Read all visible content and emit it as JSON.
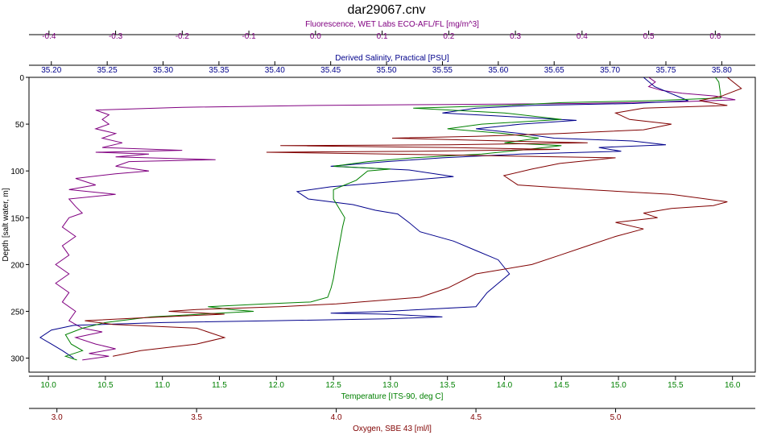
{
  "chart_data": {
    "type": "line",
    "title": "dar29067.cnv",
    "y_axis": {
      "label": "Depth [salt water, m]",
      "range": [
        0,
        315
      ],
      "reversed": true,
      "ticks": [
        0,
        50,
        100,
        150,
        200,
        250,
        300
      ]
    },
    "x_axes": [
      {
        "id": "fluorescence",
        "label": "Fluorescence, WET Labs ECO-AFL/FL [mg/m^3]",
        "position": "top",
        "color": "#800080",
        "range": [
          -0.43,
          0.66
        ],
        "ticks": [
          -0.4,
          -0.3,
          -0.2,
          -0.1,
          0.0,
          0.1,
          0.2,
          0.3,
          0.4,
          0.5,
          0.6
        ],
        "tick_labels": [
          "-0.4",
          "-0.3",
          "-0.2",
          "-0.1",
          "0.0",
          "0.1",
          "0.2",
          "0.3",
          "0.4",
          "0.5",
          "0.6"
        ]
      },
      {
        "id": "salinity",
        "label": "Derived Salinity, Practical [PSU]",
        "position": "top",
        "color": "#00008b",
        "range": [
          35.18,
          35.83
        ],
        "ticks": [
          35.2,
          35.25,
          35.3,
          35.35,
          35.4,
          35.45,
          35.5,
          35.55,
          35.6,
          35.65,
          35.7,
          35.75,
          35.8
        ],
        "tick_labels": [
          "35.20",
          "35.25",
          "35.30",
          "35.35",
          "35.40",
          "35.45",
          "35.50",
          "35.55",
          "35.60",
          "35.65",
          "35.70",
          "35.75",
          "35.80"
        ]
      },
      {
        "id": "temperature",
        "label": "Temperature [ITS-90, deg C]",
        "position": "bottom",
        "color": "#008000",
        "range": [
          9.83,
          16.2
        ],
        "ticks": [
          10.0,
          10.5,
          11.0,
          11.5,
          12.0,
          12.5,
          13.0,
          13.5,
          14.0,
          14.5,
          15.0,
          15.5,
          16.0
        ],
        "tick_labels": [
          "10.0",
          "10.5",
          "11.0",
          "11.5",
          "12.0",
          "12.5",
          "13.0",
          "13.5",
          "14.0",
          "14.5",
          "15.0",
          "15.5",
          "16.0"
        ]
      },
      {
        "id": "oxygen",
        "label": "Oxygen, SBE 43 [ml/l]",
        "position": "bottom",
        "color": "#800000",
        "range": [
          2.9,
          5.5
        ],
        "ticks": [
          3.0,
          3.5,
          4.0,
          4.5,
          5.0
        ],
        "tick_labels": [
          "3.0",
          "3.5",
          "4.0",
          "4.5",
          "5.0"
        ]
      }
    ],
    "series": [
      {
        "axis": "fluorescence",
        "color": "#800080",
        "points": [
          [
            0.5,
            0
          ],
          [
            0.51,
            5
          ],
          [
            0.5,
            10
          ],
          [
            0.52,
            14
          ],
          [
            0.55,
            17
          ],
          [
            0.6,
            20
          ],
          [
            0.63,
            24
          ],
          [
            0.55,
            26
          ],
          [
            0.4,
            28
          ],
          [
            0.2,
            29
          ],
          [
            0.0,
            30
          ],
          [
            -0.2,
            32
          ],
          [
            -0.33,
            35
          ],
          [
            -0.31,
            40
          ],
          [
            -0.32,
            45
          ],
          [
            -0.31,
            50
          ],
          [
            -0.33,
            55
          ],
          [
            -0.3,
            60
          ],
          [
            -0.32,
            65
          ],
          [
            -0.29,
            70
          ],
          [
            -0.32,
            75
          ],
          [
            -0.2,
            78
          ],
          [
            -0.33,
            80
          ],
          [
            -0.25,
            82
          ],
          [
            -0.3,
            85
          ],
          [
            -0.15,
            88
          ],
          [
            -0.28,
            90
          ],
          [
            -0.3,
            95
          ],
          [
            -0.25,
            100
          ],
          [
            -0.3,
            103
          ],
          [
            -0.36,
            108
          ],
          [
            -0.33,
            115
          ],
          [
            -0.37,
            120
          ],
          [
            -0.3,
            125
          ],
          [
            -0.37,
            130
          ],
          [
            -0.36,
            138
          ],
          [
            -0.35,
            145
          ],
          [
            -0.37,
            150
          ],
          [
            -0.38,
            160
          ],
          [
            -0.36,
            170
          ],
          [
            -0.38,
            180
          ],
          [
            -0.37,
            190
          ],
          [
            -0.39,
            200
          ],
          [
            -0.37,
            210
          ],
          [
            -0.39,
            220
          ],
          [
            -0.37,
            230
          ],
          [
            -0.38,
            240
          ],
          [
            -0.36,
            250
          ],
          [
            -0.37,
            260
          ],
          [
            -0.35,
            268
          ],
          [
            -0.32,
            272
          ],
          [
            -0.36,
            278
          ],
          [
            -0.33,
            285
          ],
          [
            -0.3,
            290
          ],
          [
            -0.34,
            295
          ],
          [
            -0.31,
            298
          ],
          [
            -0.35,
            302
          ]
        ]
      },
      {
        "axis": "salinity",
        "color": "#00008b",
        "points": [
          [
            35.73,
            0
          ],
          [
            35.74,
            10
          ],
          [
            35.77,
            25
          ],
          [
            35.72,
            28
          ],
          [
            35.63,
            30
          ],
          [
            35.58,
            33
          ],
          [
            35.55,
            38
          ],
          [
            35.61,
            42
          ],
          [
            35.67,
            46
          ],
          [
            35.62,
            50
          ],
          [
            35.58,
            55
          ],
          [
            35.62,
            60
          ],
          [
            35.65,
            65
          ],
          [
            35.72,
            68
          ],
          [
            35.75,
            72
          ],
          [
            35.69,
            75
          ],
          [
            35.71,
            79
          ],
          [
            35.62,
            82
          ],
          [
            35.55,
            86
          ],
          [
            35.5,
            90
          ],
          [
            35.45,
            95
          ],
          [
            35.52,
            99
          ],
          [
            35.56,
            106
          ],
          [
            35.5,
            112
          ],
          [
            35.45,
            117
          ],
          [
            35.42,
            122
          ],
          [
            35.43,
            130
          ],
          [
            35.47,
            136
          ],
          [
            35.49,
            142
          ],
          [
            35.51,
            146
          ],
          [
            35.52,
            155
          ],
          [
            35.53,
            165
          ],
          [
            35.56,
            175
          ],
          [
            35.58,
            185
          ],
          [
            35.6,
            195
          ],
          [
            35.61,
            210
          ],
          [
            35.6,
            220
          ],
          [
            35.59,
            230
          ],
          [
            35.58,
            245
          ],
          [
            35.5,
            250
          ],
          [
            35.45,
            252
          ],
          [
            35.5,
            253
          ],
          [
            35.55,
            256
          ],
          [
            35.5,
            258
          ],
          [
            35.4,
            260
          ],
          [
            35.3,
            262
          ],
          [
            35.22,
            265
          ],
          [
            35.2,
            270
          ],
          [
            35.19,
            278
          ],
          [
            35.2,
            285
          ],
          [
            35.21,
            292
          ],
          [
            35.22,
            300
          ]
        ]
      },
      {
        "axis": "temperature",
        "color": "#008000",
        "points": [
          [
            15.85,
            0
          ],
          [
            15.88,
            5
          ],
          [
            15.9,
            22
          ],
          [
            15.3,
            25
          ],
          [
            14.5,
            27
          ],
          [
            14.0,
            30
          ],
          [
            13.2,
            33
          ],
          [
            14.0,
            38
          ],
          [
            14.5,
            45
          ],
          [
            13.8,
            50
          ],
          [
            13.5,
            55
          ],
          [
            14.0,
            60
          ],
          [
            14.3,
            65
          ],
          [
            14.0,
            70
          ],
          [
            14.5,
            73
          ],
          [
            14.2,
            77
          ],
          [
            13.8,
            82
          ],
          [
            13.2,
            86
          ],
          [
            12.8,
            90
          ],
          [
            12.5,
            95
          ],
          [
            13.0,
            98
          ],
          [
            12.8,
            100
          ],
          [
            12.7,
            110
          ],
          [
            12.6,
            115
          ],
          [
            12.5,
            120
          ],
          [
            12.5,
            130
          ],
          [
            12.55,
            140
          ],
          [
            12.6,
            150
          ],
          [
            12.58,
            160
          ],
          [
            12.55,
            180
          ],
          [
            12.52,
            200
          ],
          [
            12.5,
            215
          ],
          [
            12.48,
            225
          ],
          [
            12.45,
            235
          ],
          [
            12.3,
            240
          ],
          [
            11.9,
            242
          ],
          [
            11.4,
            245
          ],
          [
            11.6,
            248
          ],
          [
            11.8,
            250
          ],
          [
            11.5,
            252
          ],
          [
            10.9,
            256
          ],
          [
            10.5,
            262
          ],
          [
            10.3,
            268
          ],
          [
            10.15,
            275
          ],
          [
            10.2,
            285
          ],
          [
            10.3,
            292
          ],
          [
            10.15,
            298
          ],
          [
            10.25,
            302
          ]
        ]
      },
      {
        "axis": "oxygen",
        "color": "#800000",
        "points": [
          [
            5.4,
            0
          ],
          [
            5.45,
            12
          ],
          [
            5.38,
            20
          ],
          [
            5.3,
            25
          ],
          [
            5.4,
            30
          ],
          [
            5.1,
            33
          ],
          [
            5.0,
            38
          ],
          [
            5.05,
            45
          ],
          [
            5.2,
            50
          ],
          [
            5.1,
            56
          ],
          [
            4.8,
            60
          ],
          [
            4.5,
            63
          ],
          [
            4.2,
            65
          ],
          [
            4.6,
            68
          ],
          [
            4.9,
            70
          ],
          [
            4.4,
            72
          ],
          [
            3.8,
            73
          ],
          [
            4.4,
            75
          ],
          [
            4.8,
            77
          ],
          [
            4.3,
            79
          ],
          [
            3.75,
            80
          ],
          [
            4.4,
            83
          ],
          [
            5.0,
            86
          ],
          [
            4.8,
            92
          ],
          [
            4.7,
            98
          ],
          [
            4.6,
            105
          ],
          [
            4.65,
            115
          ],
          [
            4.9,
            120
          ],
          [
            5.2,
            125
          ],
          [
            5.4,
            133
          ],
          [
            5.35,
            137
          ],
          [
            5.2,
            140
          ],
          [
            5.1,
            145
          ],
          [
            5.15,
            150
          ],
          [
            5.0,
            155
          ],
          [
            5.1,
            162
          ],
          [
            5.0,
            170
          ],
          [
            4.9,
            180
          ],
          [
            4.8,
            190
          ],
          [
            4.7,
            200
          ],
          [
            4.5,
            210
          ],
          [
            4.4,
            225
          ],
          [
            4.3,
            235
          ],
          [
            4.0,
            242
          ],
          [
            3.8,
            245
          ],
          [
            3.5,
            248
          ],
          [
            3.4,
            250
          ],
          [
            3.6,
            253
          ],
          [
            3.3,
            257
          ],
          [
            3.1,
            260
          ],
          [
            3.2,
            264
          ],
          [
            3.5,
            268
          ],
          [
            3.6,
            278
          ],
          [
            3.5,
            285
          ],
          [
            3.3,
            292
          ],
          [
            3.2,
            298
          ]
        ]
      }
    ],
    "grid": false,
    "legend": "none"
  }
}
